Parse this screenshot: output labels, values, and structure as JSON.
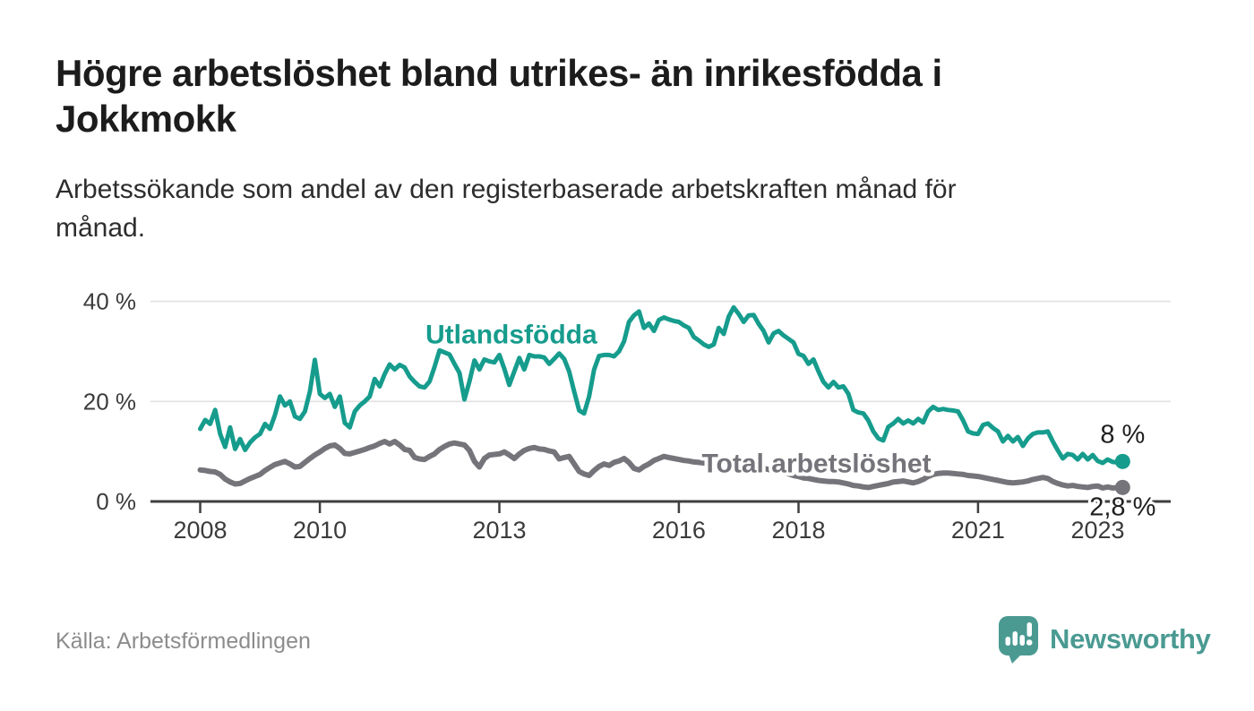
{
  "header": {
    "title_lines": [
      "Högre arbetslöshet bland utrikes- än inrikesfödda i",
      "Jokkmokk"
    ],
    "subtitle_lines": [
      "Arbetssökande som andel av den registerbaserade arbetskraften månad för",
      "månad."
    ]
  },
  "footer": {
    "source": "Källa: Arbetsförmedlingen",
    "brand": "Newsworthy"
  },
  "colors": {
    "teal": "#169C8D",
    "gray": "#74747A",
    "grid": "#E3E1E1",
    "axis": "#3F3F3F",
    "tick_label": "#3B3B3B",
    "annotation": "#1F1F1F",
    "logo": "#4A9A92"
  },
  "chart_data": {
    "type": "line",
    "unit": "%",
    "x_start": "2008-01",
    "x_end": "2023-06",
    "x_interval": "monthly",
    "ylim": [
      0,
      42
    ],
    "grid": true,
    "y_ticks": [
      {
        "value": 40,
        "label": "40 %"
      },
      {
        "value": 20,
        "label": "20 %"
      },
      {
        "value": 0,
        "label": "0 %"
      }
    ],
    "x_ticks": [
      {
        "year": 2008,
        "label": "2008"
      },
      {
        "year": 2010,
        "label": "2010"
      },
      {
        "year": 2013,
        "label": "2013"
      },
      {
        "year": 2016,
        "label": "2016"
      },
      {
        "year": 2018,
        "label": "2018"
      },
      {
        "year": 2021,
        "label": "2021"
      },
      {
        "year": 2023,
        "label": "2023"
      }
    ],
    "series": [
      {
        "name": "Utlandsfödda",
        "color": "#169C8D",
        "line_width": 5,
        "end_label": "8 %",
        "values": [
          14.5,
          16.3,
          15.5,
          18.3,
          13.5,
          10.9,
          14.8,
          10.5,
          12.5,
          10.3,
          11.8,
          12.8,
          13.5,
          15.5,
          14.5,
          17.3,
          21,
          19.2,
          20,
          17,
          16.5,
          18,
          22,
          28.3,
          21.5,
          20.7,
          21.5,
          18.9,
          21,
          15.7,
          14.8,
          18,
          19.2,
          20,
          21,
          24.5,
          23,
          25.5,
          27.4,
          26.4,
          27.3,
          26.8,
          25,
          23.9,
          23,
          22.8,
          24,
          26.9,
          30.2,
          29.8,
          29.4,
          27.5,
          25.7,
          20.4,
          24,
          28.2,
          26.4,
          28.4,
          28,
          27.8,
          29.3,
          26.5,
          23.3,
          26,
          28.7,
          26.4,
          29.3,
          29,
          29,
          28.8,
          27.5,
          28.5,
          29.6,
          28.5,
          26,
          22,
          18.2,
          17.6,
          21,
          26.4,
          29.1,
          29.3,
          29.3,
          29,
          30,
          32,
          35.9,
          37.2,
          38,
          34.7,
          35.6,
          34.1,
          36.3,
          36.8,
          36.4,
          36.1,
          35.9,
          35.2,
          34.7,
          32.9,
          32.2,
          31.4,
          30.9,
          31.4,
          34.7,
          33.5,
          37,
          38.8,
          37.5,
          35.9,
          37.2,
          37.3,
          35.5,
          34.1,
          31.8,
          33.6,
          34.1,
          33.2,
          32.5,
          31.8,
          29.5,
          29.1,
          27.5,
          28.4,
          26,
          23.9,
          22.8,
          23.9,
          22.8,
          23,
          21.5,
          18.3,
          17.8,
          17.6,
          16.2,
          14,
          12.6,
          12.2,
          14.9,
          15.6,
          16.5,
          15.6,
          16.2,
          15.6,
          16.5,
          15.8,
          18,
          18.9,
          18.3,
          18.5,
          18.3,
          18.2,
          18,
          16.2,
          14,
          13.6,
          13.5,
          15.3,
          15.6,
          14.7,
          14,
          12,
          13.1,
          12,
          12.9,
          11.1,
          12.6,
          13.5,
          13.8,
          13.8,
          14,
          12,
          10.2,
          8.6,
          9.5,
          9.3,
          8.4,
          9.5,
          8.4,
          9.3,
          8.1,
          7.7,
          8.4,
          7.9,
          7.8,
          8
        ]
      },
      {
        "name": "Total arbetslöshet",
        "color": "#74747A",
        "line_width": 6,
        "end_label": "2,8 %",
        "values": [
          6.3,
          6.2,
          6,
          5.9,
          5.4,
          4.5,
          3.9,
          3.5,
          3.6,
          4.1,
          4.6,
          5,
          5.4,
          6.2,
          6.8,
          7.4,
          7.7,
          8,
          7.5,
          6.9,
          7,
          7.8,
          8.6,
          9.3,
          9.9,
          10.6,
          11.1,
          11.3,
          10.6,
          9.6,
          9.5,
          9.8,
          10.1,
          10.4,
          10.8,
          11.1,
          11.6,
          12,
          11.5,
          12,
          11.3,
          10.4,
          10.2,
          8.8,
          8.5,
          8.4,
          9,
          9.5,
          10.4,
          11,
          11.5,
          11.7,
          11.5,
          11.3,
          10.2,
          8,
          6.9,
          8.6,
          9.3,
          9.4,
          9.5,
          9.9,
          9.3,
          8.6,
          9.5,
          10.2,
          10.6,
          10.8,
          10.5,
          10.4,
          10.1,
          9.9,
          8.5,
          8.8,
          9,
          7.5,
          6,
          5.5,
          5.2,
          6.2,
          7,
          7.5,
          7.2,
          7.8,
          8.1,
          8.6,
          7.8,
          6.6,
          6.3,
          7,
          7.5,
          8.2,
          8.6,
          9,
          8.8,
          8.6,
          8.4,
          8.2,
          8.1,
          7.9,
          7.8,
          7.7,
          7.8,
          7.9,
          7.8,
          7.7,
          7.6,
          7.5,
          7.4,
          7.3,
          7.2,
          7,
          6.8,
          6.6,
          6.4,
          6.2,
          6,
          5.8,
          5.5,
          5.2,
          5,
          4.7,
          4.6,
          4.4,
          4.2,
          4.1,
          4,
          4,
          3.9,
          3.7,
          3.5,
          3.2,
          3.1,
          2.9,
          2.8,
          3,
          3.2,
          3.4,
          3.6,
          3.9,
          4,
          4.1,
          3.9,
          3.7,
          4,
          4.4,
          5,
          5.4,
          5.6,
          5.7,
          5.7,
          5.6,
          5.5,
          5.4,
          5.2,
          5.1,
          5,
          4.8,
          4.6,
          4.4,
          4.2,
          4,
          3.8,
          3.7,
          3.8,
          3.9,
          4.1,
          4.4,
          4.6,
          4.8,
          4.6,
          4,
          3.6,
          3.3,
          3.1,
          3.2,
          3,
          2.9,
          2.8,
          3,
          3.1,
          2.7,
          2.9,
          2.7,
          2.75,
          2.8
        ]
      }
    ],
    "series_labels": [
      {
        "text": "Utlandsfödda",
        "t": 2013.2,
        "v": 33.4,
        "color": "#169C8D"
      },
      {
        "text": "Total arbetslöshet",
        "t": 2018.3,
        "v": 7.6,
        "color": "#74747A"
      }
    ],
    "end_annotations": [
      {
        "text": "8 %",
        "v": 8,
        "dy": -21,
        "halo": false
      },
      {
        "text": "2,8 %",
        "v": 2.8,
        "dy": 31,
        "halo": true
      }
    ],
    "legend_position": "inline-labels"
  }
}
